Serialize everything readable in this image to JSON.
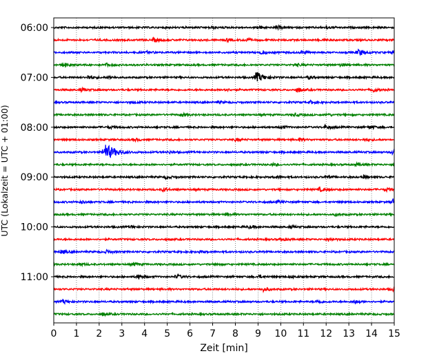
{
  "chart_data": {
    "type": "line",
    "xlabel": "Zeit  [min]",
    "ylabel": "UTC (Lokalzeit = UTC + 01:00)",
    "xlim": [
      0,
      15
    ],
    "x_ticks": [
      "0",
      "1",
      "2",
      "3",
      "4",
      "5",
      "6",
      "7",
      "8",
      "9",
      "10",
      "11",
      "12",
      "13",
      "14",
      "15"
    ],
    "y_ticks": [
      "06:00",
      "07:00",
      "08:00",
      "09:00",
      "10:00",
      "11:00"
    ],
    "grid": "vertical dotted",
    "colors": [
      "#000000",
      "#ff0000",
      "#0000ff",
      "#008000"
    ],
    "series": [
      {
        "time": "06:00",
        "color": "#000000",
        "events": [
          [
            6.9,
            1.5
          ],
          [
            9.0,
            1.8
          ],
          [
            9.8,
            2.5
          ],
          [
            12.0,
            1.2
          ]
        ]
      },
      {
        "time": "06:15",
        "color": "#ff0000",
        "events": [
          [
            4.4,
            2.5
          ],
          [
            7.6,
            1.8
          ],
          [
            8.4,
            2.0
          ],
          [
            11.9,
            1.4
          ]
        ]
      },
      {
        "time": "06:30",
        "color": "#0000ff",
        "events": [
          [
            4.1,
            1.6
          ],
          [
            9.1,
            2.6
          ],
          [
            10.9,
            1.8
          ],
          [
            13.4,
            4.0
          ],
          [
            14.9,
            2.0
          ]
        ]
      },
      {
        "time": "06:45",
        "color": "#008000",
        "events": [
          [
            0.4,
            3.0
          ],
          [
            2.3,
            1.6
          ],
          [
            10.6,
            1.8
          ],
          [
            12.6,
            2.0
          ]
        ]
      },
      {
        "time": "07:00",
        "color": "#000000",
        "events": [
          [
            1.5,
            3.0
          ],
          [
            2.4,
            1.6
          ],
          [
            8.9,
            6.5
          ],
          [
            11.2,
            1.8
          ]
        ]
      },
      {
        "time": "07:15",
        "color": "#ff0000",
        "events": [
          [
            1.2,
            2.0
          ],
          [
            7.5,
            1.8
          ],
          [
            10.7,
            3.0
          ],
          [
            14.0,
            3.0
          ]
        ]
      },
      {
        "time": "07:30",
        "color": "#0000ff",
        "events": [
          [
            3.4,
            1.5
          ],
          [
            7.2,
            1.4
          ],
          [
            11.3,
            2.0
          ]
        ]
      },
      {
        "time": "07:45",
        "color": "#008000",
        "events": [
          [
            5.6,
            2.0
          ],
          [
            10.6,
            1.6
          ],
          [
            12.0,
            1.5
          ]
        ]
      },
      {
        "time": "08:00",
        "color": "#000000",
        "events": [
          [
            2.4,
            1.8
          ],
          [
            10.0,
            1.8
          ],
          [
            11.9,
            2.6
          ],
          [
            13.9,
            2.2
          ]
        ]
      },
      {
        "time": "08:15",
        "color": "#ff0000",
        "events": [
          [
            3.6,
            1.5
          ],
          [
            8.0,
            1.8
          ],
          [
            10.8,
            2.0
          ],
          [
            13.7,
            1.5
          ]
        ]
      },
      {
        "time": "08:30",
        "color": "#0000ff",
        "events": [
          [
            2.2,
            11.0
          ],
          [
            5.0,
            1.4
          ],
          [
            14.9,
            2.5
          ]
        ]
      },
      {
        "time": "08:45",
        "color": "#008000",
        "events": [
          [
            9.6,
            1.4
          ],
          [
            13.3,
            2.0
          ]
        ]
      },
      {
        "time": "09:00",
        "color": "#000000",
        "events": [
          [
            4.9,
            2.0
          ],
          [
            9.7,
            1.8
          ],
          [
            12.0,
            1.8
          ],
          [
            13.6,
            2.0
          ]
        ]
      },
      {
        "time": "09:15",
        "color": "#ff0000",
        "events": [
          [
            4.8,
            2.4
          ],
          [
            11.7,
            2.4
          ],
          [
            14.6,
            2.0
          ]
        ]
      },
      {
        "time": "09:30",
        "color": "#0000ff",
        "events": [
          [
            1.2,
            1.8
          ],
          [
            9.8,
            1.5
          ],
          [
            14.9,
            4.0
          ]
        ]
      },
      {
        "time": "09:45",
        "color": "#008000",
        "events": [
          [
            7.6,
            1.8
          ],
          [
            12.4,
            1.5
          ]
        ]
      },
      {
        "time": "10:00",
        "color": "#000000",
        "events": [
          [
            3.4,
            1.5
          ],
          [
            8.6,
            1.5
          ],
          [
            10.4,
            1.4
          ]
        ]
      },
      {
        "time": "10:15",
        "color": "#ff0000",
        "events": [
          [
            10.0,
            1.8
          ],
          [
            12.1,
            2.4
          ]
        ]
      },
      {
        "time": "10:30",
        "color": "#0000ff",
        "events": [
          [
            0.3,
            2.5
          ],
          [
            2.3,
            2.2
          ],
          [
            6.4,
            1.4
          ]
        ]
      },
      {
        "time": "10:45",
        "color": "#008000",
        "events": [
          [
            1.1,
            1.8
          ],
          [
            3.5,
            2.2
          ],
          [
            7.1,
            1.4
          ]
        ]
      },
      {
        "time": "11:00",
        "color": "#000000",
        "events": [
          [
            3.7,
            3.0
          ],
          [
            5.4,
            2.5
          ],
          [
            9.0,
            2.0
          ],
          [
            10.4,
            1.6
          ]
        ]
      },
      {
        "time": "11:15",
        "color": "#ff0000",
        "events": [
          [
            9.2,
            2.6
          ],
          [
            14.9,
            1.8
          ]
        ]
      },
      {
        "time": "11:30",
        "color": "#0000ff",
        "events": [
          [
            0.4,
            2.5
          ],
          [
            11.6,
            2.2
          ],
          [
            13.2,
            2.4
          ]
        ]
      },
      {
        "time": "11:45",
        "color": "#008000",
        "events": [
          [
            2.1,
            2.0
          ]
        ]
      }
    ]
  }
}
